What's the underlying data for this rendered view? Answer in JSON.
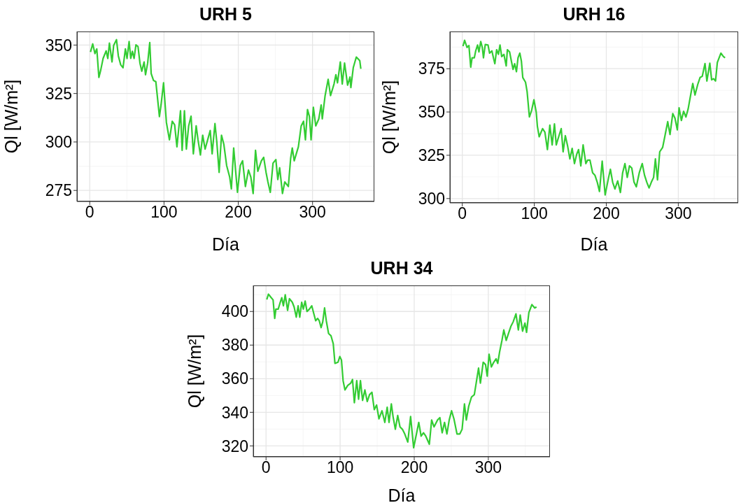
{
  "chart_data": [
    {
      "type": "line",
      "title": "URH 5",
      "xlabel": "Día",
      "ylabel": "Ql [W/m²]",
      "xlim": [
        -17.2,
        383.2
      ],
      "xticks": [
        0,
        100,
        200,
        300
      ],
      "ylim": [
        269.3,
        357
      ],
      "yticks": [
        275,
        300,
        325,
        350
      ],
      "grid": true,
      "line_style": "solid",
      "x": [
        1,
        4,
        7,
        9.5,
        12.3,
        14.8,
        18,
        22.1,
        24.3,
        26.5,
        30,
        32.2,
        36,
        38.5,
        41.7,
        44.8,
        48,
        50.2,
        53,
        55.2,
        57.4,
        59.7,
        62.2,
        65,
        67.6,
        70.1,
        73.2,
        75.1,
        78,
        80.8,
        82.7,
        85.9,
        89,
        90.6,
        93.8,
        96,
        99.4,
        103.2,
        107.3,
        111.1,
        114.3,
        117.4,
        122.2,
        124.4,
        127.5,
        130.1,
        133.2,
        136.4,
        139.5,
        143.3,
        145.8,
        149,
        152.1,
        155.3,
        162.2,
        164.8,
        168.6,
        171.1,
        174.2,
        177.4,
        180.6,
        184.3,
        188.4,
        190.7,
        193.8,
        198.9,
        202.7,
        205.8,
        209.6,
        213.7,
        216.9,
        220,
        223.2,
        226.3,
        231.1,
        234.2,
        237.4,
        239.9,
        243.1,
        246.8,
        250.6,
        253.2,
        255.7,
        259.5,
        262.6,
        267.4,
        270.5,
        272.7,
        275.3,
        280.9,
        284.7,
        287.9,
        290.4,
        293.2,
        295.8,
        298,
        301.1,
        304.3,
        308.4,
        311.6,
        313.1,
        316.9,
        321,
        324.2,
        328.9,
        331.4,
        333.6,
        337.4,
        340,
        343.1,
        347.2,
        350.4,
        351.6,
        354.8,
        358.9,
        363.6,
        365
      ],
      "series": [
        {
          "color": "#33cc33",
          "values": [
            346.4,
            350.6,
            345.6,
            348,
            333.3,
            337.1,
            343.1,
            347,
            343.1,
            351,
            341.3,
            349.8,
            352.8,
            344.4,
            339.8,
            338.3,
            348,
            343.1,
            351.8,
            343.1,
            346.8,
            343.1,
            350.1,
            349.2,
            340.7,
            336.5,
            341.3,
            334.7,
            340.7,
            351.3,
            335.3,
            331.7,
            331.1,
            325.1,
            313.1,
            319.1,
            330.5,
            310.1,
            301.1,
            310.7,
            308.9,
            297.5,
            316.1,
            295.7,
            316.1,
            296.3,
            308.3,
            313.3,
            293.9,
            308.3,
            301.1,
            293.3,
            303.5,
            296.3,
            305.9,
            293.9,
            309.5,
            299.9,
            284.3,
            303.5,
            298.7,
            287.9,
            281.9,
            275.8,
            296.9,
            274,
            287.9,
            290.3,
            277,
            285.5,
            281.9,
            273.4,
            295.7,
            284.9,
            290.3,
            292.1,
            284.3,
            279.4,
            274,
            289.1,
            290.9,
            280.6,
            286.7,
            273.4,
            279.4,
            277,
            291.5,
            296.9,
            290.3,
            297.5,
            308.3,
            310.7,
            301.1,
            316.7,
            313.1,
            301.1,
            317.9,
            308.3,
            311.9,
            319.1,
            311.9,
            323.9,
            332.3,
            323.9,
            329.9,
            334.7,
            330.5,
            341.3,
            329.9,
            340.7,
            329.3,
            333.5,
            328.1,
            338.3,
            343.8,
            341.9,
            337.7
          ]
        }
      ]
    },
    {
      "type": "line",
      "title": "URH 16",
      "xlabel": "Día",
      "ylabel": "Ql [W/m²]",
      "xlim": [
        -17.2,
        383.2
      ],
      "xticks": [
        0,
        100,
        200,
        300
      ],
      "ylim": [
        297.5,
        396.5
      ],
      "yticks": [
        300,
        325,
        350,
        375
      ],
      "grid": true,
      "line_style": "solid",
      "x": [
        1,
        3.2,
        6.6,
        9.2,
        11.7,
        13.6,
        16.7,
        18.6,
        21.2,
        23.1,
        25.6,
        27.8,
        29.4,
        31.9,
        35.7,
        37.9,
        41.1,
        43.6,
        45.2,
        47.7,
        50.2,
        52.4,
        54.7,
        57.8,
        61,
        62.6,
        65.7,
        68.2,
        70.5,
        72.7,
        75.2,
        77.4,
        79.9,
        82.1,
        84,
        87.8,
        90,
        93.2,
        96.4,
        99.5,
        102.7,
        104.3,
        106.8,
        111.5,
        114.7,
        118.2,
        121.6,
        124.8,
        128,
        130.5,
        134.3,
        137.4,
        140,
        143.1,
        146.3,
        149.4,
        152.6,
        155.8,
        158.9,
        161.5,
        164.6,
        167.8,
        171.6,
        174.1,
        177.3,
        181,
        184.2,
        187.4,
        190.5,
        194.3,
        198.4,
        203.2,
        205.7,
        208.8,
        212,
        215.8,
        219.6,
        222.7,
        225.9,
        229.1,
        232.2,
        235.4,
        238.5,
        241.7,
        245.8,
        249.9,
        253.1,
        256.2,
        259.4,
        262.6,
        265.7,
        268.2,
        271.1,
        274.2,
        278.3,
        281.5,
        285.3,
        288.5,
        292.3,
        295.4,
        298.6,
        301.1,
        304.3,
        307.4,
        310.6,
        313.7,
        316.9,
        320.1,
        323.2,
        327,
        330.2,
        333.3,
        337.1,
        339.7,
        343.8,
        346.3,
        349.1,
        351.7,
        354.2,
        359.2,
        362.7,
        365
      ],
      "series": [
        {
          "color": "#33cc33",
          "values": [
            388,
            391.4,
            387.3,
            388.4,
            375.9,
            381.3,
            381.3,
            385.3,
            388.7,
            384.7,
            390.7,
            387.3,
            381.3,
            389,
            388.7,
            384,
            385.3,
            380.6,
            377.9,
            386,
            383.3,
            388.7,
            382,
            383.3,
            376.6,
            386,
            384.7,
            379.3,
            374.6,
            377.9,
            373.3,
            381.3,
            384,
            379.3,
            369.9,
            367.2,
            361.8,
            347.1,
            351.1,
            357.1,
            349.8,
            341.7,
            335.7,
            340.4,
            338.4,
            328.3,
            342.4,
            331,
            343.1,
            331,
            336.3,
            340.4,
            327,
            336.3,
            330.3,
            322.9,
            329,
            320.2,
            325.6,
            328.3,
            318.9,
            331,
            320.2,
            322.2,
            322.2,
            314.9,
            313.5,
            309.5,
            304.1,
            321.6,
            302.1,
            312.2,
            316.9,
            309.5,
            305.5,
            310.2,
            303.5,
            314.9,
            320.2,
            312.2,
            318.9,
            317.6,
            309.5,
            306.8,
            314.9,
            320.2,
            313.5,
            309.5,
            306.1,
            309.5,
            312.2,
            322.9,
            310.8,
            327,
            329.6,
            336.3,
            344.4,
            337,
            349.1,
            346.4,
            339.7,
            352.4,
            345.1,
            350.4,
            347.1,
            351.8,
            359.2,
            366.5,
            359.8,
            365.9,
            369.9,
            370.6,
            378,
            367.9,
            378.2,
            368.6,
            369.2,
            367.9,
            378.6,
            384,
            382,
            381.3
          ]
        }
      ]
    },
    {
      "type": "line",
      "title": "URH 34",
      "xlabel": "Día",
      "ylabel": "Ql [W/m²]",
      "xlim": [
        -17.2,
        383.2
      ],
      "xticks": [
        0,
        100,
        200,
        300
      ],
      "ylim": [
        313.5,
        415.5
      ],
      "yticks": [
        320,
        340,
        360,
        380,
        400
      ],
      "grid": true,
      "line_style": "solid",
      "x": [
        1,
        3.2,
        7,
        9.5,
        11.7,
        13.3,
        16.4,
        18.7,
        21.2,
        23.4,
        25.9,
        29.1,
        31.6,
        35.4,
        37.9,
        40.8,
        43.3,
        45.5,
        48.1,
        50.3,
        52.8,
        55.3,
        58.5,
        61.7,
        64.5,
        67,
        69.6,
        71.8,
        74.3,
        76.5,
        79,
        81.3,
        84.4,
        87.6,
        90.7,
        93,
        97.1,
        99.6,
        101.8,
        104,
        106.5,
        110.3,
        114.4,
        116.7,
        119.2,
        122.4,
        124.9,
        127.4,
        130.3,
        133.4,
        136.6,
        139.7,
        142.9,
        146.1,
        149.2,
        152.4,
        156.5,
        160.3,
        163.5,
        166,
        169.1,
        171.4,
        174.5,
        177.7,
        180.8,
        184,
        187.2,
        191.3,
        195.1,
        199.2,
        203,
        206.1,
        209.3,
        212.5,
        215.6,
        220.4,
        223.5,
        226.7,
        231.4,
        234.6,
        237.7,
        240.9,
        244.1,
        247.2,
        250.4,
        253.6,
        257.7,
        261.5,
        264.6,
        267.8,
        270.3,
        273.5,
        277.3,
        281.1,
        283.6,
        286.8,
        289.3,
        293.1,
        296.2,
        298.5,
        301,
        304.1,
        307.3,
        310.5,
        312.7,
        315.2,
        318.4,
        320.9,
        324.1,
        327.2,
        330.4,
        333.5,
        337.3,
        340.5,
        343,
        346.2,
        349.4,
        351.6,
        354.7,
        358.8,
        362.6,
        365
      ],
      "series": [
        {
          "color": "#33cc33",
          "values": [
            407.1,
            410.3,
            408.2,
            406.9,
            395.9,
            401.4,
            401.4,
            404.8,
            408.2,
            403.4,
            409.9,
            400.7,
            407.6,
            405.5,
            402.7,
            396.6,
            403.4,
            396.6,
            405.5,
            401.4,
            406.2,
            400,
            401.4,
            403.4,
            398.6,
            394.5,
            395.9,
            394.5,
            390.4,
            393.8,
            402.1,
            394.5,
            386.9,
            385.6,
            380.8,
            369.1,
            369.8,
            373.2,
            371.1,
            358.8,
            353.3,
            356,
            357.4,
            359.5,
            345.7,
            358.8,
            347.8,
            358.8,
            347.1,
            353.3,
            346.4,
            350.5,
            351.9,
            341.6,
            344.3,
            336.1,
            340.9,
            334,
            343,
            334,
            345,
            337.5,
            329.9,
            338.1,
            331.3,
            329.9,
            327.1,
            322.3,
            337.5,
            318.9,
            327.1,
            334,
            325.8,
            327.8,
            325.8,
            321,
            335.4,
            331.3,
            335.4,
            336.8,
            327.8,
            334,
            327.1,
            335.4,
            340.9,
            336.1,
            327.1,
            327.1,
            329.9,
            345,
            335.4,
            343.6,
            349.1,
            350.5,
            357.4,
            366.3,
            357.4,
            369.8,
            368.4,
            361.5,
            374.6,
            367,
            369.8,
            371.8,
            369.1,
            375.9,
            382.8,
            389,
            382.8,
            386.9,
            391.1,
            393.8,
            398.6,
            389,
            397.9,
            388.3,
            393.1,
            387.6,
            399.3,
            404.1,
            402.1,
            402.7
          ]
        }
      ]
    }
  ]
}
